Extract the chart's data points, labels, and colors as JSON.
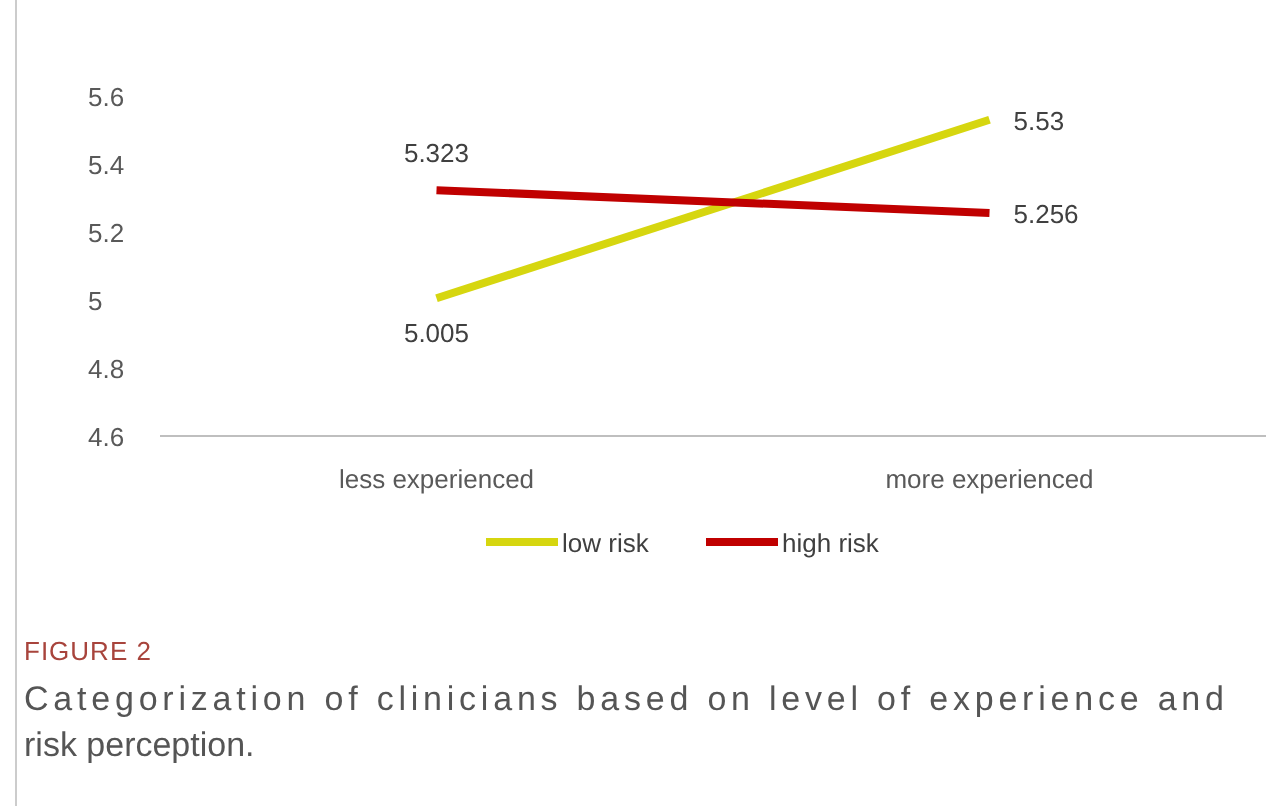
{
  "chart_data": {
    "type": "line",
    "categories": [
      "less experienced",
      "more experienced"
    ],
    "series": [
      {
        "name": "low risk",
        "color": "#d6d60f",
        "values": [
          5.005,
          5.53
        ]
      },
      {
        "name": "high risk",
        "color": "#c00000",
        "values": [
          5.323,
          5.256
        ]
      }
    ],
    "ylim": [
      4.6,
      5.6
    ],
    "yticks": [
      4.6,
      4.8,
      5,
      5.2,
      5.4,
      5.6
    ],
    "grid": false,
    "legend": "bottom",
    "data_labels": true,
    "marker": "none",
    "line_style": "solid",
    "annotations": [
      "FIGURE 2",
      "Categorization of clinicians based on level of experience and risk perception."
    ]
  }
}
